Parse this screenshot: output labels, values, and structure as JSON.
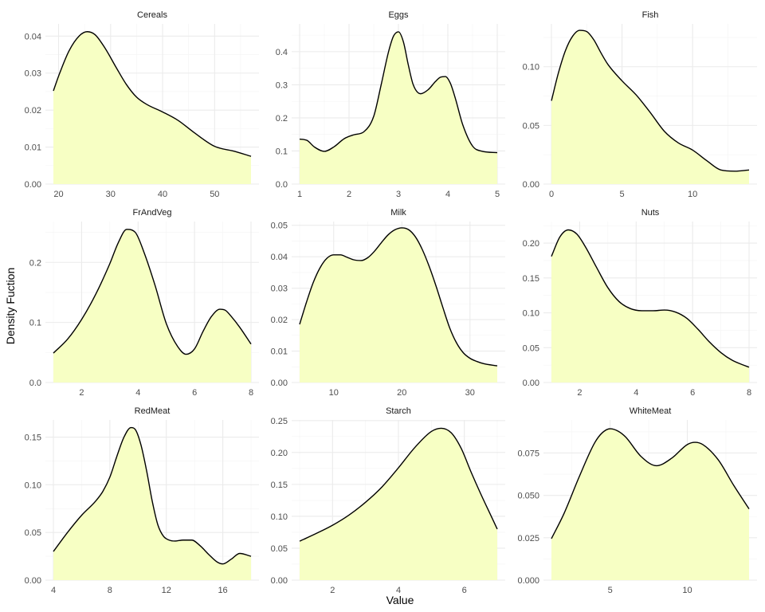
{
  "figure": {
    "xlabel": "Value",
    "ylabel": "Density Fuction"
  },
  "style": {
    "fill_color": "#f7ffc4",
    "line_color": "#000000",
    "grid_color": "#ebebeb"
  },
  "chart_data": [
    {
      "type": "area",
      "title": "Cereals",
      "xlim": [
        19,
        57
      ],
      "ylim": [
        0,
        0.0433
      ],
      "xticks": [
        20,
        30,
        40,
        50
      ],
      "yticks": [
        "0.00",
        "0.01",
        "0.02",
        "0.03",
        "0.04"
      ],
      "x": [
        19,
        20,
        22,
        24,
        25.5,
        27,
        29,
        31,
        33,
        35,
        37,
        40,
        43,
        46,
        50,
        54,
        57
      ],
      "y": [
        0.0252,
        0.0292,
        0.036,
        0.0401,
        0.0412,
        0.0404,
        0.0366,
        0.0317,
        0.027,
        0.0235,
        0.0215,
        0.0195,
        0.0172,
        0.014,
        0.0102,
        0.0088,
        0.0075
      ]
    },
    {
      "type": "area",
      "title": "Eggs",
      "xlim": [
        1,
        5
      ],
      "ylim": [
        0,
        0.484
      ],
      "xticks": [
        1,
        2,
        3,
        4,
        5
      ],
      "yticks": [
        "0.0",
        "0.1",
        "0.2",
        "0.3",
        "0.4"
      ],
      "x": [
        1,
        1.15,
        1.3,
        1.5,
        1.7,
        1.9,
        2.1,
        2.3,
        2.5,
        2.65,
        2.8,
        2.9,
        3.0,
        3.1,
        3.2,
        3.3,
        3.45,
        3.6,
        3.75,
        3.85,
        3.95,
        4.05,
        4.15,
        4.3,
        4.5,
        4.7,
        5
      ],
      "y": [
        0.136,
        0.132,
        0.112,
        0.099,
        0.113,
        0.137,
        0.149,
        0.158,
        0.205,
        0.3,
        0.4,
        0.447,
        0.46,
        0.43,
        0.36,
        0.3,
        0.273,
        0.285,
        0.31,
        0.323,
        0.325,
        0.305,
        0.26,
        0.18,
        0.115,
        0.099,
        0.095
      ]
    },
    {
      "type": "area",
      "title": "Fish",
      "xlim": [
        0,
        14
      ],
      "ylim": [
        0,
        0.1365
      ],
      "xticks": [
        0,
        5,
        10
      ],
      "yticks": [
        "0.00",
        "0.05",
        "0.10"
      ],
      "x": [
        0,
        0.5,
        1,
        1.5,
        2,
        2.5,
        3,
        3.5,
        4,
        5,
        6,
        7,
        8,
        9,
        10,
        11,
        12,
        13,
        14
      ],
      "y": [
        0.071,
        0.095,
        0.114,
        0.126,
        0.131,
        0.13,
        0.123,
        0.112,
        0.102,
        0.088,
        0.076,
        0.061,
        0.045,
        0.035,
        0.029,
        0.02,
        0.012,
        0.011,
        0.012
      ]
    },
    {
      "type": "area",
      "title": "FrAndVeg",
      "xlim": [
        1,
        8
      ],
      "ylim": [
        0,
        0.268
      ],
      "xticks": [
        2,
        4,
        6,
        8
      ],
      "yticks": [
        "0.0",
        "0.1",
        "0.2"
      ],
      "x": [
        1,
        1.5,
        2,
        2.5,
        3,
        3.3,
        3.6,
        3.9,
        4.2,
        4.6,
        5,
        5.4,
        5.7,
        6,
        6.3,
        6.6,
        6.9,
        7.1,
        7.3,
        7.6,
        8
      ],
      "y": [
        0.049,
        0.072,
        0.105,
        0.147,
        0.198,
        0.233,
        0.255,
        0.25,
        0.218,
        0.162,
        0.098,
        0.06,
        0.047,
        0.056,
        0.085,
        0.11,
        0.122,
        0.12,
        0.11,
        0.092,
        0.064
      ]
    },
    {
      "type": "area",
      "title": "Milk",
      "xlim": [
        5,
        34
      ],
      "ylim": [
        0,
        0.0512
      ],
      "xticks": [
        10,
        20,
        30
      ],
      "yticks": [
        "0.00",
        "0.01",
        "0.02",
        "0.03",
        "0.04",
        "0.05"
      ],
      "x": [
        5,
        6,
        7,
        8,
        9,
        10,
        11,
        12,
        13,
        14,
        15,
        16,
        17,
        18,
        19,
        20,
        21,
        22,
        23,
        24,
        25,
        26,
        27,
        28,
        29,
        30,
        31,
        32,
        34
      ],
      "y": [
        0.0185,
        0.0255,
        0.0318,
        0.0365,
        0.0395,
        0.0406,
        0.0406,
        0.0398,
        0.039,
        0.0388,
        0.0397,
        0.0418,
        0.0445,
        0.047,
        0.0486,
        0.0492,
        0.0486,
        0.0463,
        0.0423,
        0.037,
        0.0308,
        0.024,
        0.0175,
        0.0127,
        0.0095,
        0.0077,
        0.0067,
        0.006,
        0.0053
      ]
    },
    {
      "type": "area",
      "title": "Nuts",
      "xlim": [
        1,
        8
      ],
      "ylim": [
        0,
        0.231
      ],
      "xticks": [
        2,
        4,
        6,
        8
      ],
      "yticks": [
        "0.00",
        "0.05",
        "0.10",
        "0.15",
        "0.20"
      ],
      "x": [
        1,
        1.3,
        1.6,
        1.9,
        2.2,
        2.6,
        3,
        3.4,
        3.8,
        4.2,
        4.6,
        5,
        5.4,
        5.8,
        6.2,
        6.6,
        7,
        7.4,
        7.8,
        8
      ],
      "y": [
        0.181,
        0.209,
        0.219,
        0.213,
        0.195,
        0.165,
        0.136,
        0.116,
        0.106,
        0.103,
        0.103,
        0.104,
        0.101,
        0.092,
        0.076,
        0.058,
        0.043,
        0.032,
        0.025,
        0.022
      ]
    },
    {
      "type": "area",
      "title": "RedMeat",
      "xlim": [
        4,
        18
      ],
      "ylim": [
        0,
        0.168
      ],
      "xticks": [
        4,
        8,
        12,
        16
      ],
      "yticks": [
        "0.00",
        "0.05",
        "0.10",
        "0.15"
      ],
      "x": [
        4,
        5,
        6,
        7,
        7.5,
        8,
        8.5,
        9,
        9.5,
        9.8,
        10.2,
        10.6,
        11,
        11.4,
        11.8,
        12.2,
        12.6,
        13.2,
        13.8,
        14.4,
        15,
        15.6,
        16,
        16.6,
        17.2,
        18
      ],
      "y": [
        0.03,
        0.05,
        0.068,
        0.083,
        0.093,
        0.108,
        0.13,
        0.15,
        0.16,
        0.158,
        0.142,
        0.115,
        0.083,
        0.058,
        0.046,
        0.042,
        0.041,
        0.042,
        0.042,
        0.036,
        0.027,
        0.019,
        0.017,
        0.022,
        0.028,
        0.025
      ]
    },
    {
      "type": "area",
      "title": "Starch",
      "xlim": [
        1,
        7
      ],
      "ylim": [
        0,
        0.251
      ],
      "xticks": [
        2,
        4,
        6
      ],
      "yticks": [
        "0.00",
        "0.05",
        "0.10",
        "0.15",
        "0.20",
        "0.25"
      ],
      "x": [
        1,
        1.5,
        2,
        2.5,
        3,
        3.5,
        4,
        4.5,
        5,
        5.3,
        5.6,
        5.9,
        6.2,
        6.5,
        6.8,
        7
      ],
      "y": [
        0.061,
        0.073,
        0.086,
        0.102,
        0.122,
        0.146,
        0.176,
        0.208,
        0.233,
        0.238,
        0.231,
        0.207,
        0.17,
        0.135,
        0.102,
        0.08
      ]
    },
    {
      "type": "area",
      "title": "WhiteMeat",
      "xlim": [
        1.2,
        14
      ],
      "ylim": [
        0,
        0.0945
      ],
      "xticks": [
        5,
        10
      ],
      "yticks": [
        "0.000",
        "0.025",
        "0.050",
        "0.075"
      ],
      "x": [
        1.2,
        2,
        3,
        4,
        4.5,
        5,
        5.5,
        6,
        7,
        8,
        9,
        10,
        10.5,
        11,
        12,
        13,
        14
      ],
      "y": [
        0.0245,
        0.039,
        0.061,
        0.081,
        0.087,
        0.0893,
        0.088,
        0.0845,
        0.073,
        0.0675,
        0.072,
        0.08,
        0.0813,
        0.08,
        0.071,
        0.056,
        0.042
      ]
    }
  ]
}
